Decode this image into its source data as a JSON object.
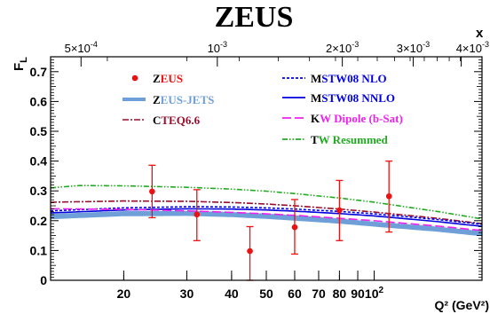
{
  "chart_data": {
    "type": "line",
    "title": "ZEUS",
    "xlabel": "Q² (GeV²)",
    "ylabel": "F",
    "ylabel_subscript": "L",
    "x2label": "x",
    "xscale": "log",
    "xlim": [
      12.5,
      200
    ],
    "ylim": [
      0,
      0.75
    ],
    "grid": false,
    "legend_position": "top",
    "y_ticks": [
      "0",
      "0.1",
      "0.2",
      "0.3",
      "0.4",
      "0.5",
      "0.6",
      "0.7"
    ],
    "x_ticks": [
      {
        "value": 20,
        "label": "20"
      },
      {
        "value": 30,
        "label": "30"
      },
      {
        "value": 40,
        "label": "40"
      },
      {
        "value": 50,
        "label": "50"
      },
      {
        "value": 60,
        "label": "60"
      },
      {
        "value": 70,
        "label": "70"
      },
      {
        "value": 80,
        "label": "80"
      },
      {
        "value": 90,
        "label": "90"
      },
      {
        "value": 100,
        "label": "10",
        "sup": "2"
      }
    ],
    "x2_ticks": [
      {
        "label": "5×10",
        "sup": "-4"
      },
      {
        "label": "10",
        "sup": "-3"
      },
      {
        "label": "2×10",
        "sup": "-3"
      },
      {
        "label": "3×10",
        "sup": "-3"
      },
      {
        "label": "4×10",
        "sup": "-3"
      }
    ],
    "x2_tick_q2": [
      15.2,
      36.5,
      81.5,
      128.5,
      175
    ],
    "data_points": {
      "name": "ZEUS",
      "color": "#ee1111",
      "points": [
        {
          "x": 24,
          "y": 0.298,
          "err_lo": 0.088,
          "err_hi": 0.088
        },
        {
          "x": 32,
          "y": 0.221,
          "err_lo": 0.088,
          "err_hi": 0.083
        },
        {
          "x": 45,
          "y": 0.098,
          "err_lo": 0.098,
          "err_hi": 0.082
        },
        {
          "x": 60,
          "y": 0.178,
          "err_lo": 0.09,
          "err_hi": 0.093
        },
        {
          "x": 80,
          "y": 0.235,
          "err_lo": 0.102,
          "err_hi": 0.1
        },
        {
          "x": 110,
          "y": 0.282,
          "err_lo": 0.12,
          "err_hi": 0.118
        }
      ]
    },
    "band": {
      "name": "ZEUS-JETS",
      "color": "#6f9fd8",
      "x": [
        12.5,
        20,
        30,
        40,
        50,
        60,
        80,
        100,
        150,
        200
      ],
      "lower": [
        0.205,
        0.215,
        0.216,
        0.212,
        0.206,
        0.2,
        0.19,
        0.18,
        0.163,
        0.148
      ],
      "upper": [
        0.223,
        0.232,
        0.233,
        0.229,
        0.224,
        0.218,
        0.207,
        0.197,
        0.18,
        0.165
      ]
    },
    "series": [
      {
        "name": "CTEQ6.6",
        "color": "#9a0f2e",
        "dash": "7,2,2,2",
        "x": [
          12.5,
          20,
          30,
          40,
          50,
          60,
          80,
          100,
          150,
          200
        ],
        "values": [
          0.262,
          0.266,
          0.265,
          0.261,
          0.256,
          0.25,
          0.239,
          0.229,
          0.208,
          0.19
        ]
      },
      {
        "name": "MSTW08 NLO",
        "color": "#0000ee",
        "dash": "3,2",
        "x": [
          12.5,
          20,
          30,
          40,
          50,
          60,
          80,
          100,
          150,
          200
        ],
        "values": [
          0.233,
          0.243,
          0.247,
          0.246,
          0.243,
          0.239,
          0.231,
          0.223,
          0.204,
          0.188
        ]
      },
      {
        "name": "MSTW08 NNLO",
        "color": "#0000dd",
        "dash": "",
        "x": [
          12.5,
          20,
          30,
          40,
          50,
          60,
          80,
          100,
          150,
          200
        ],
        "values": [
          0.226,
          0.236,
          0.24,
          0.239,
          0.236,
          0.232,
          0.224,
          0.216,
          0.197,
          0.181
        ]
      },
      {
        "name": "KW Dipole (b-Sat)",
        "color": "#ee22ee",
        "dash": "10,4",
        "x": [
          12.5,
          20,
          30,
          40,
          50,
          60,
          80,
          100,
          150,
          200
        ],
        "values": [
          0.24,
          0.238,
          0.233,
          0.228,
          0.223,
          0.218,
          0.208,
          0.2,
          0.182,
          0.167
        ]
      },
      {
        "name": "TW Resummed",
        "color": "#22aa22",
        "dash": "6,2,1.5,2,1.5,2",
        "x": [
          12.5,
          15,
          20,
          30,
          40,
          50,
          60,
          80,
          100,
          150,
          200
        ],
        "values": [
          0.31,
          0.318,
          0.317,
          0.312,
          0.306,
          0.299,
          0.291,
          0.276,
          0.262,
          0.231,
          0.206
        ]
      }
    ]
  }
}
